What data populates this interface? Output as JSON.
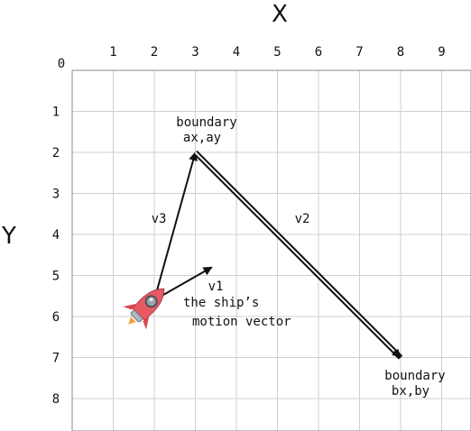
{
  "axes": {
    "x_title": "X",
    "y_title": "Y",
    "origin_label": "0",
    "x_ticks": [
      "1",
      "2",
      "3",
      "4",
      "5",
      "6",
      "7",
      "8",
      "9"
    ],
    "y_ticks": [
      "1",
      "2",
      "3",
      "4",
      "5",
      "6",
      "7",
      "8"
    ]
  },
  "points": {
    "ship": {
      "x": 2,
      "y": 5.6
    },
    "a": {
      "x": 3,
      "y": 2
    },
    "b": {
      "x": 8,
      "y": 7
    },
    "v1_tip": {
      "x": 3.4,
      "y": 4.8
    }
  },
  "labels": {
    "boundary_a_line1": "boundary",
    "boundary_a_line2": "ax,ay",
    "boundary_b_line1": "boundary",
    "boundary_b_line2": "bx,by",
    "v1": "v1",
    "v2": "v2",
    "v3": "v3",
    "motion_line1": "the ship’s",
    "motion_line2": "motion vector"
  },
  "colors": {
    "grid": "#cfcfcf",
    "border": "#8a8a8a",
    "arrow": "#111111",
    "rocket_body": "#e85a63",
    "rocket_window": "#9aa3ad"
  },
  "icons": {
    "ship": "rocket-icon"
  }
}
